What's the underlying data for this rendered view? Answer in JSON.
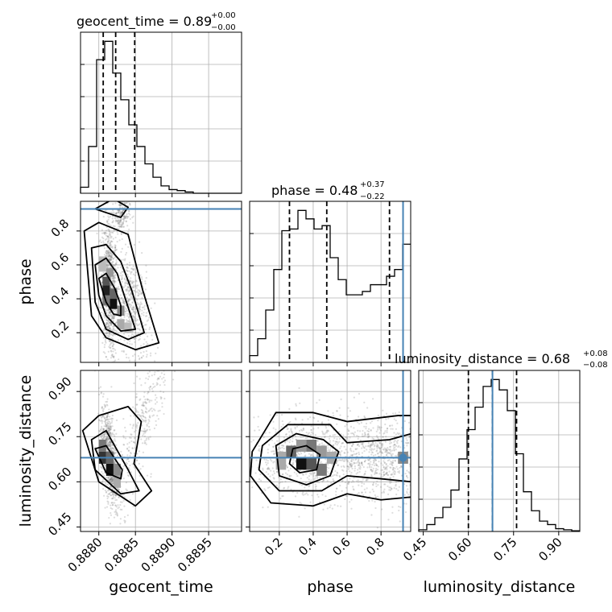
{
  "chart_data": {
    "type": "corner",
    "parameters": [
      "geocent_time",
      "phase",
      "luminosity_distance"
    ],
    "titles": {
      "geocent_time": {
        "name": "geocent_time",
        "median": "0.89",
        "plus": "+0.00",
        "minus": "−0.00"
      },
      "phase": {
        "name": "phase",
        "median": "0.48",
        "plus": "+0.37",
        "minus": "−0.22"
      },
      "luminosity_distance": {
        "name": "luminosity_distance",
        "median": "0.68",
        "plus": "+0.08",
        "minus": "−0.08"
      }
    },
    "axis_labels": {
      "x": [
        "geocent_time",
        "phase",
        "luminosity_distance"
      ],
      "y": [
        "phase",
        "luminosity_distance"
      ]
    },
    "ranges": {
      "geocent_time": [
        0.88775,
        0.88995
      ],
      "phase": [
        0.025,
        0.975
      ],
      "luminosity_distance": [
        0.435,
        0.97
      ]
    },
    "ticks": {
      "geocent_time": [
        "0.8880",
        "0.8885",
        "0.8890",
        "0.8895"
      ],
      "phase": [
        "0.2",
        "0.4",
        "0.6",
        "0.8"
      ],
      "luminosity_distance": [
        "0.45",
        "0.60",
        "0.75",
        "0.90"
      ]
    },
    "tick_values": {
      "geocent_time": [
        0.888,
        0.8885,
        0.889,
        0.8895
      ],
      "phase": [
        0.2,
        0.4,
        0.6,
        0.8
      ],
      "luminosity_distance": [
        0.45,
        0.6,
        0.75,
        0.9
      ]
    },
    "quantiles": {
      "geocent_time": [
        0.88806,
        0.88823,
        0.88849
      ],
      "phase": [
        0.26,
        0.48,
        0.85
      ],
      "luminosity_distance": [
        0.6,
        0.68,
        0.76
      ]
    },
    "truths": {
      "geocent_time": null,
      "phase": 0.93,
      "luminosity_distance": 0.68
    },
    "hist_1d": {
      "geocent_time": {
        "edges": [
          0.88775,
          0.88786,
          0.88797,
          0.88808,
          0.88819,
          0.8883,
          0.88841,
          0.88852,
          0.88863,
          0.88874,
          0.88885,
          0.88896,
          0.88907,
          0.88918,
          0.88929,
          0.8894,
          0.88951,
          0.88962,
          0.88973,
          0.88984,
          0.88995
        ],
        "counts": [
          0.18,
          1.4,
          4.0,
          4.55,
          3.6,
          2.8,
          2.05,
          1.4,
          0.88,
          0.48,
          0.22,
          0.11,
          0.08,
          0.04,
          0,
          0,
          0,
          0,
          0,
          0
        ]
      },
      "phase": {
        "edges": [
          0.025,
          0.0725,
          0.12,
          0.1675,
          0.215,
          0.2625,
          0.31,
          0.3575,
          0.405,
          0.4525,
          0.5,
          0.5475,
          0.595,
          0.6425,
          0.69,
          0.7375,
          0.785,
          0.8325,
          0.88,
          0.9275,
          0.975
        ],
        "counts": [
          0.2,
          0.7,
          1.55,
          2.75,
          3.9,
          3.95,
          4.5,
          4.25,
          3.95,
          4.05,
          3.1,
          2.45,
          2.0,
          2.0,
          2.1,
          2.3,
          2.3,
          2.55,
          2.75,
          3.5
        ]
      },
      "luminosity_distance": {
        "edges": [
          0.435,
          0.46175,
          0.4885,
          0.51525,
          0.542,
          0.56875,
          0.5955,
          0.62225,
          0.649,
          0.67575,
          0.7025,
          0.72925,
          0.756,
          0.78275,
          0.8095,
          0.83625,
          0.863,
          0.88975,
          0.9165,
          0.94325,
          0.97
        ],
        "counts": [
          0.05,
          0.2,
          0.4,
          0.7,
          1.2,
          2.1,
          2.95,
          3.6,
          4.2,
          4.4,
          4.1,
          3.5,
          2.25,
          1.15,
          0.6,
          0.3,
          0.2,
          0.08,
          0.05,
          0.02
        ]
      }
    },
    "grid": true
  }
}
